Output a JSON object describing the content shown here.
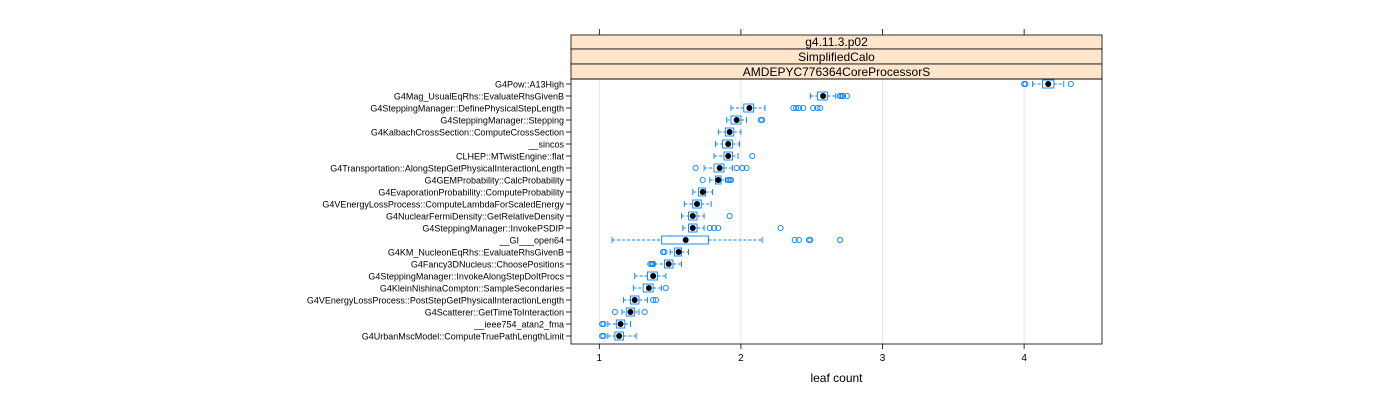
{
  "chart_data": {
    "type": "boxplot",
    "strips": [
      "g4.11.3.p02",
      "SimplifiedCalo",
      "AMDEPYC776364CoreProcessorS"
    ],
    "xlabel": "leaf count",
    "ylabel": "",
    "xlim": [
      0.8,
      4.55
    ],
    "xticks": [
      1,
      2,
      3,
      4
    ],
    "grid": true,
    "categories": [
      "G4Pow::A13High",
      "G4Mag_UsualEqRhs::EvaluateRhsGivenB",
      "G4SteppingManager::DefinePhysicalStepLength",
      "G4SteppingManager::Stepping",
      "G4KalbachCrossSection::ComputeCrossSection",
      "__sincos",
      "CLHEP::MTwistEngine::flat",
      "G4Transportation::AlongStepGetPhysicalInteractionLength",
      "G4GEMProbability::CalcProbability",
      "G4EvaporationProbability::ComputeProbability",
      "G4VEnergyLossProcess::ComputeLambdaForScaledEnergy",
      "G4NuclearFermiDensity::GetRelativeDensity",
      "G4SteppingManager::InvokePSDIP",
      "__GI___open64",
      "G4KM_NucleonEqRhs::EvaluateRhsGivenB",
      "G4Fancy3DNucleus::ChoosePositions",
      "G4SteppingManager::InvokeAlongStepDoItProcs",
      "G4KleinNishinaCompton::SampleSecondaries",
      "G4VEnergyLossProcess::PostStepGetPhysicalInteractionLength",
      "G4Scatterer::GetTimeToInteraction",
      "__ieee754_atan2_fma",
      "G4UrbanMscModel::ComputeTruePathLengthLimit"
    ],
    "boxes": [
      {
        "wl": 4.06,
        "q1": 4.13,
        "med": 4.17,
        "q3": 4.21,
        "wh": 4.28,
        "out": [
          4.0,
          4.01,
          4.33
        ]
      },
      {
        "wl": 2.49,
        "q1": 2.54,
        "med": 2.58,
        "q3": 2.61,
        "wh": 2.67,
        "out": [
          2.7,
          2.71,
          2.72,
          2.75
        ]
      },
      {
        "wl": 1.93,
        "q1": 2.02,
        "med": 2.06,
        "q3": 2.09,
        "wh": 2.17,
        "out": [
          2.37,
          2.39,
          2.41,
          2.44,
          2.51,
          2.54,
          2.56
        ]
      },
      {
        "wl": 1.9,
        "q1": 1.93,
        "med": 1.97,
        "q3": 2.0,
        "wh": 2.04,
        "out": [
          2.14,
          2.15
        ]
      },
      {
        "wl": 1.84,
        "q1": 1.89,
        "med": 1.92,
        "q3": 1.95,
        "wh": 2.0
      },
      {
        "wl": 1.82,
        "q1": 1.87,
        "med": 1.91,
        "q3": 1.94,
        "wh": 1.99
      },
      {
        "wl": 1.81,
        "q1": 1.88,
        "med": 1.91,
        "q3": 1.94,
        "wh": 1.98,
        "out": [
          2.08
        ]
      },
      {
        "wl": 1.74,
        "q1": 1.81,
        "med": 1.85,
        "q3": 1.88,
        "wh": 1.94,
        "out": [
          1.68,
          1.97,
          2.01,
          2.04
        ]
      },
      {
        "wl": 1.78,
        "q1": 1.82,
        "med": 1.84,
        "q3": 1.86,
        "wh": 1.89,
        "out": [
          1.73,
          1.91,
          1.92,
          1.93
        ]
      },
      {
        "wl": 1.66,
        "q1": 1.7,
        "med": 1.73,
        "q3": 1.75,
        "wh": 1.8
      },
      {
        "wl": 1.6,
        "q1": 1.66,
        "med": 1.69,
        "q3": 1.72,
        "wh": 1.79
      },
      {
        "wl": 1.58,
        "q1": 1.63,
        "med": 1.66,
        "q3": 1.69,
        "wh": 1.74,
        "out": [
          1.92
        ]
      },
      {
        "wl": 1.59,
        "q1": 1.63,
        "med": 1.66,
        "q3": 1.69,
        "wh": 1.74,
        "out": [
          1.78,
          1.81,
          1.84,
          2.28
        ]
      },
      {
        "wl": 1.09,
        "q1": 1.44,
        "med": 1.61,
        "q3": 1.77,
        "wh": 2.15,
        "out": [
          2.38,
          2.41,
          2.48,
          2.49,
          2.7
        ]
      },
      {
        "wl": 1.5,
        "q1": 1.53,
        "med": 1.56,
        "q3": 1.58,
        "wh": 1.63,
        "out": [
          1.45,
          1.46
        ]
      },
      {
        "wl": 1.39,
        "q1": 1.46,
        "med": 1.49,
        "q3": 1.52,
        "wh": 1.58,
        "out": [
          1.36,
          1.37,
          1.38
        ]
      },
      {
        "wl": 1.25,
        "q1": 1.34,
        "med": 1.38,
        "q3": 1.41,
        "wh": 1.47
      },
      {
        "wl": 1.24,
        "q1": 1.31,
        "med": 1.35,
        "q3": 1.38,
        "wh": 1.44,
        "out": [
          1.47
        ]
      },
      {
        "wl": 1.17,
        "q1": 1.22,
        "med": 1.25,
        "q3": 1.28,
        "wh": 1.34,
        "out": [
          1.38,
          1.4
        ]
      },
      {
        "wl": 1.16,
        "q1": 1.19,
        "med": 1.22,
        "q3": 1.25,
        "wh": 1.28,
        "out": [
          1.11,
          1.32
        ]
      },
      {
        "wl": 1.06,
        "q1": 1.12,
        "med": 1.15,
        "q3": 1.18,
        "wh": 1.22,
        "out": [
          1.02,
          1.03
        ]
      },
      {
        "wl": 1.06,
        "q1": 1.11,
        "med": 1.14,
        "q3": 1.17,
        "wh": 1.26,
        "out": [
          1.02,
          1.03
        ]
      }
    ]
  }
}
